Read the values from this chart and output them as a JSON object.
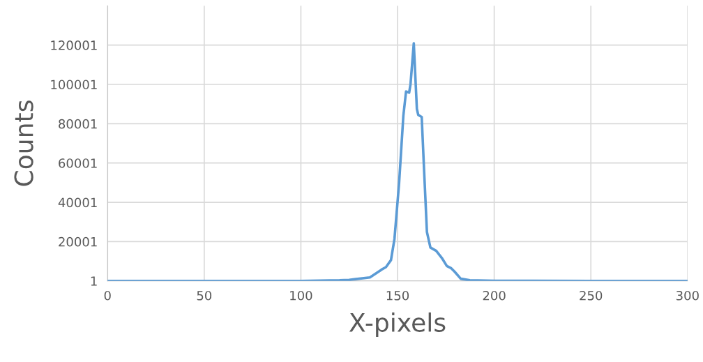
{
  "chart_data": {
    "type": "line",
    "xlabel": "X-pixels",
    "ylabel": "Counts",
    "series": [
      {
        "color": "#5b9bd5",
        "x": [
          0,
          50,
          100,
          120,
          125,
          135.7,
          141.8,
          144,
          146.6,
          148.4,
          150.8,
          153,
          154.4,
          156,
          156.7,
          158.4,
          160,
          160.7,
          162.5,
          163.6,
          165.2,
          167,
          170,
          172.9,
          175.5,
          177.8,
          179.6,
          182.7,
          187.4,
          200,
          250,
          300
        ],
        "values": [
          1,
          1,
          1,
          300,
          500,
          1800,
          5800,
          7000,
          10600,
          21300,
          49700,
          84000,
          96400,
          95800,
          100000,
          120900,
          87500,
          84500,
          83400,
          59100,
          24900,
          17000,
          15300,
          11700,
          7600,
          6400,
          4600,
          1100,
          300,
          100,
          1,
          1
        ]
      }
    ],
    "xlim": [
      0,
      300
    ],
    "xticks": [
      0,
      50,
      100,
      150,
      200,
      250,
      300
    ],
    "ylim": [
      1,
      140001
    ],
    "yticks": [
      1,
      20001,
      40001,
      60001,
      80001,
      100001,
      120001
    ],
    "grid": true,
    "marker": "none",
    "line_style": "solid"
  }
}
